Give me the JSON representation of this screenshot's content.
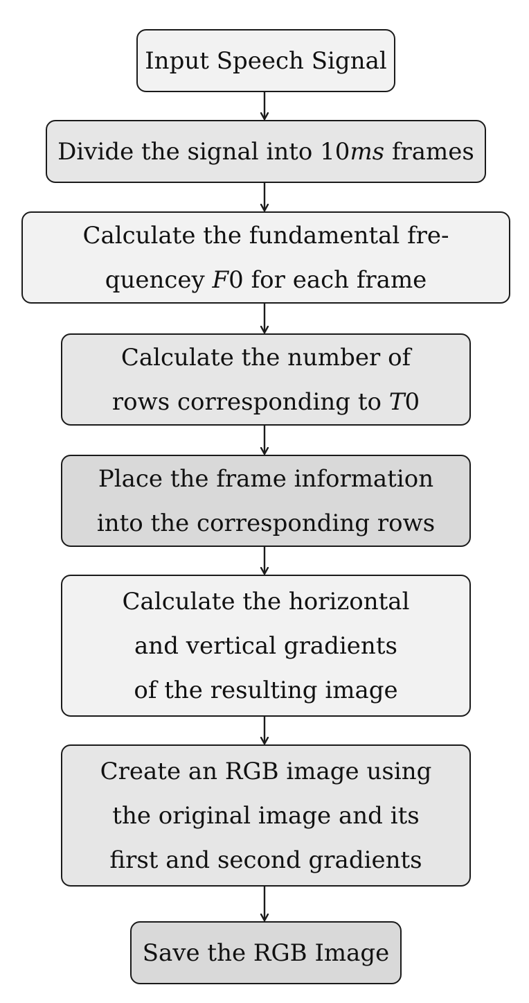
{
  "steps": [
    {
      "id": "input",
      "lines": [
        {
          "pre": "Input Speech Signal"
        }
      ]
    },
    {
      "id": "divide",
      "lines": [
        {
          "pre": "Divide the signal into 10",
          "em": "ms",
          "post": " frames"
        }
      ]
    },
    {
      "id": "f0",
      "lines": [
        {
          "pre": "Calculate the fundamental fre-"
        },
        {
          "pre": "quencey ",
          "em": "F",
          "post": "0 for each frame"
        }
      ]
    },
    {
      "id": "rows",
      "lines": [
        {
          "pre": "Calculate the number of"
        },
        {
          "pre": "rows corresponding to ",
          "em": "T",
          "post": "0"
        }
      ]
    },
    {
      "id": "place",
      "lines": [
        {
          "pre": "Place the frame information"
        },
        {
          "pre": "into the corresponding rows"
        }
      ]
    },
    {
      "id": "gradients",
      "lines": [
        {
          "pre": "Calculate the horizontal"
        },
        {
          "pre": "and vertical gradients"
        },
        {
          "pre": "of the resulting image"
        }
      ]
    },
    {
      "id": "rgb",
      "lines": [
        {
          "pre": "Create an RGB image using"
        },
        {
          "pre": "the original image and its"
        },
        {
          "pre": "first and second gradients"
        }
      ]
    },
    {
      "id": "save",
      "lines": [
        {
          "pre": "Save the RGB Image"
        }
      ]
    }
  ],
  "colors": {
    "light": "#f2f2f2",
    "medium": "#e6e6e6",
    "dark": "#d9d9d9",
    "stroke": "#1a1a1a"
  }
}
